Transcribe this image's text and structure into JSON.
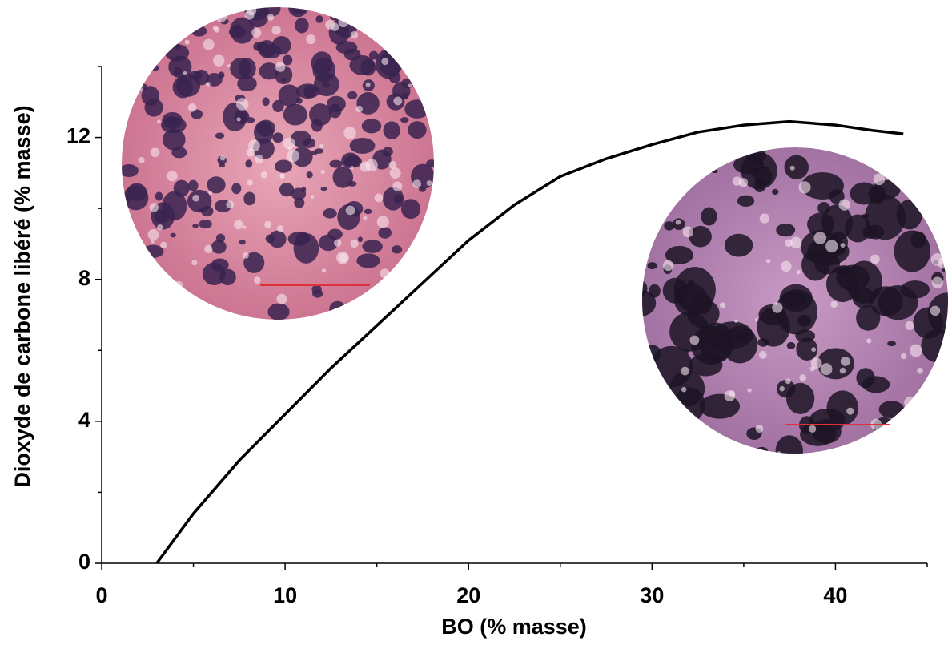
{
  "chart_data": {
    "type": "line",
    "x_label": "BO (% masse)",
    "y_label": "Dioxyde de carbone libéré (% masse)",
    "series": [
      {
        "color": "#000000",
        "x": [
          3,
          5,
          7.5,
          10,
          12.5,
          15,
          17.5,
          20,
          22.5,
          25,
          27.5,
          30,
          32.5,
          35,
          37.5,
          40,
          42,
          43.7
        ],
        "values": [
          0,
          1.4,
          2.9,
          4.2,
          5.5,
          6.7,
          7.9,
          9.1,
          10.1,
          10.9,
          11.4,
          11.8,
          12.15,
          12.35,
          12.45,
          12.35,
          12.2,
          12.1
        ]
      }
    ],
    "xlim": [
      0,
      45
    ],
    "xticks": [
      0,
      10,
      20,
      30,
      40
    ],
    "xminorticks": [
      5,
      15,
      25,
      35,
      45
    ],
    "ylim": [
      0,
      14
    ],
    "yticks": [
      0,
      4,
      8,
      12
    ],
    "yminorticks": [
      2,
      6,
      10,
      14
    ],
    "grid": false
  }
}
